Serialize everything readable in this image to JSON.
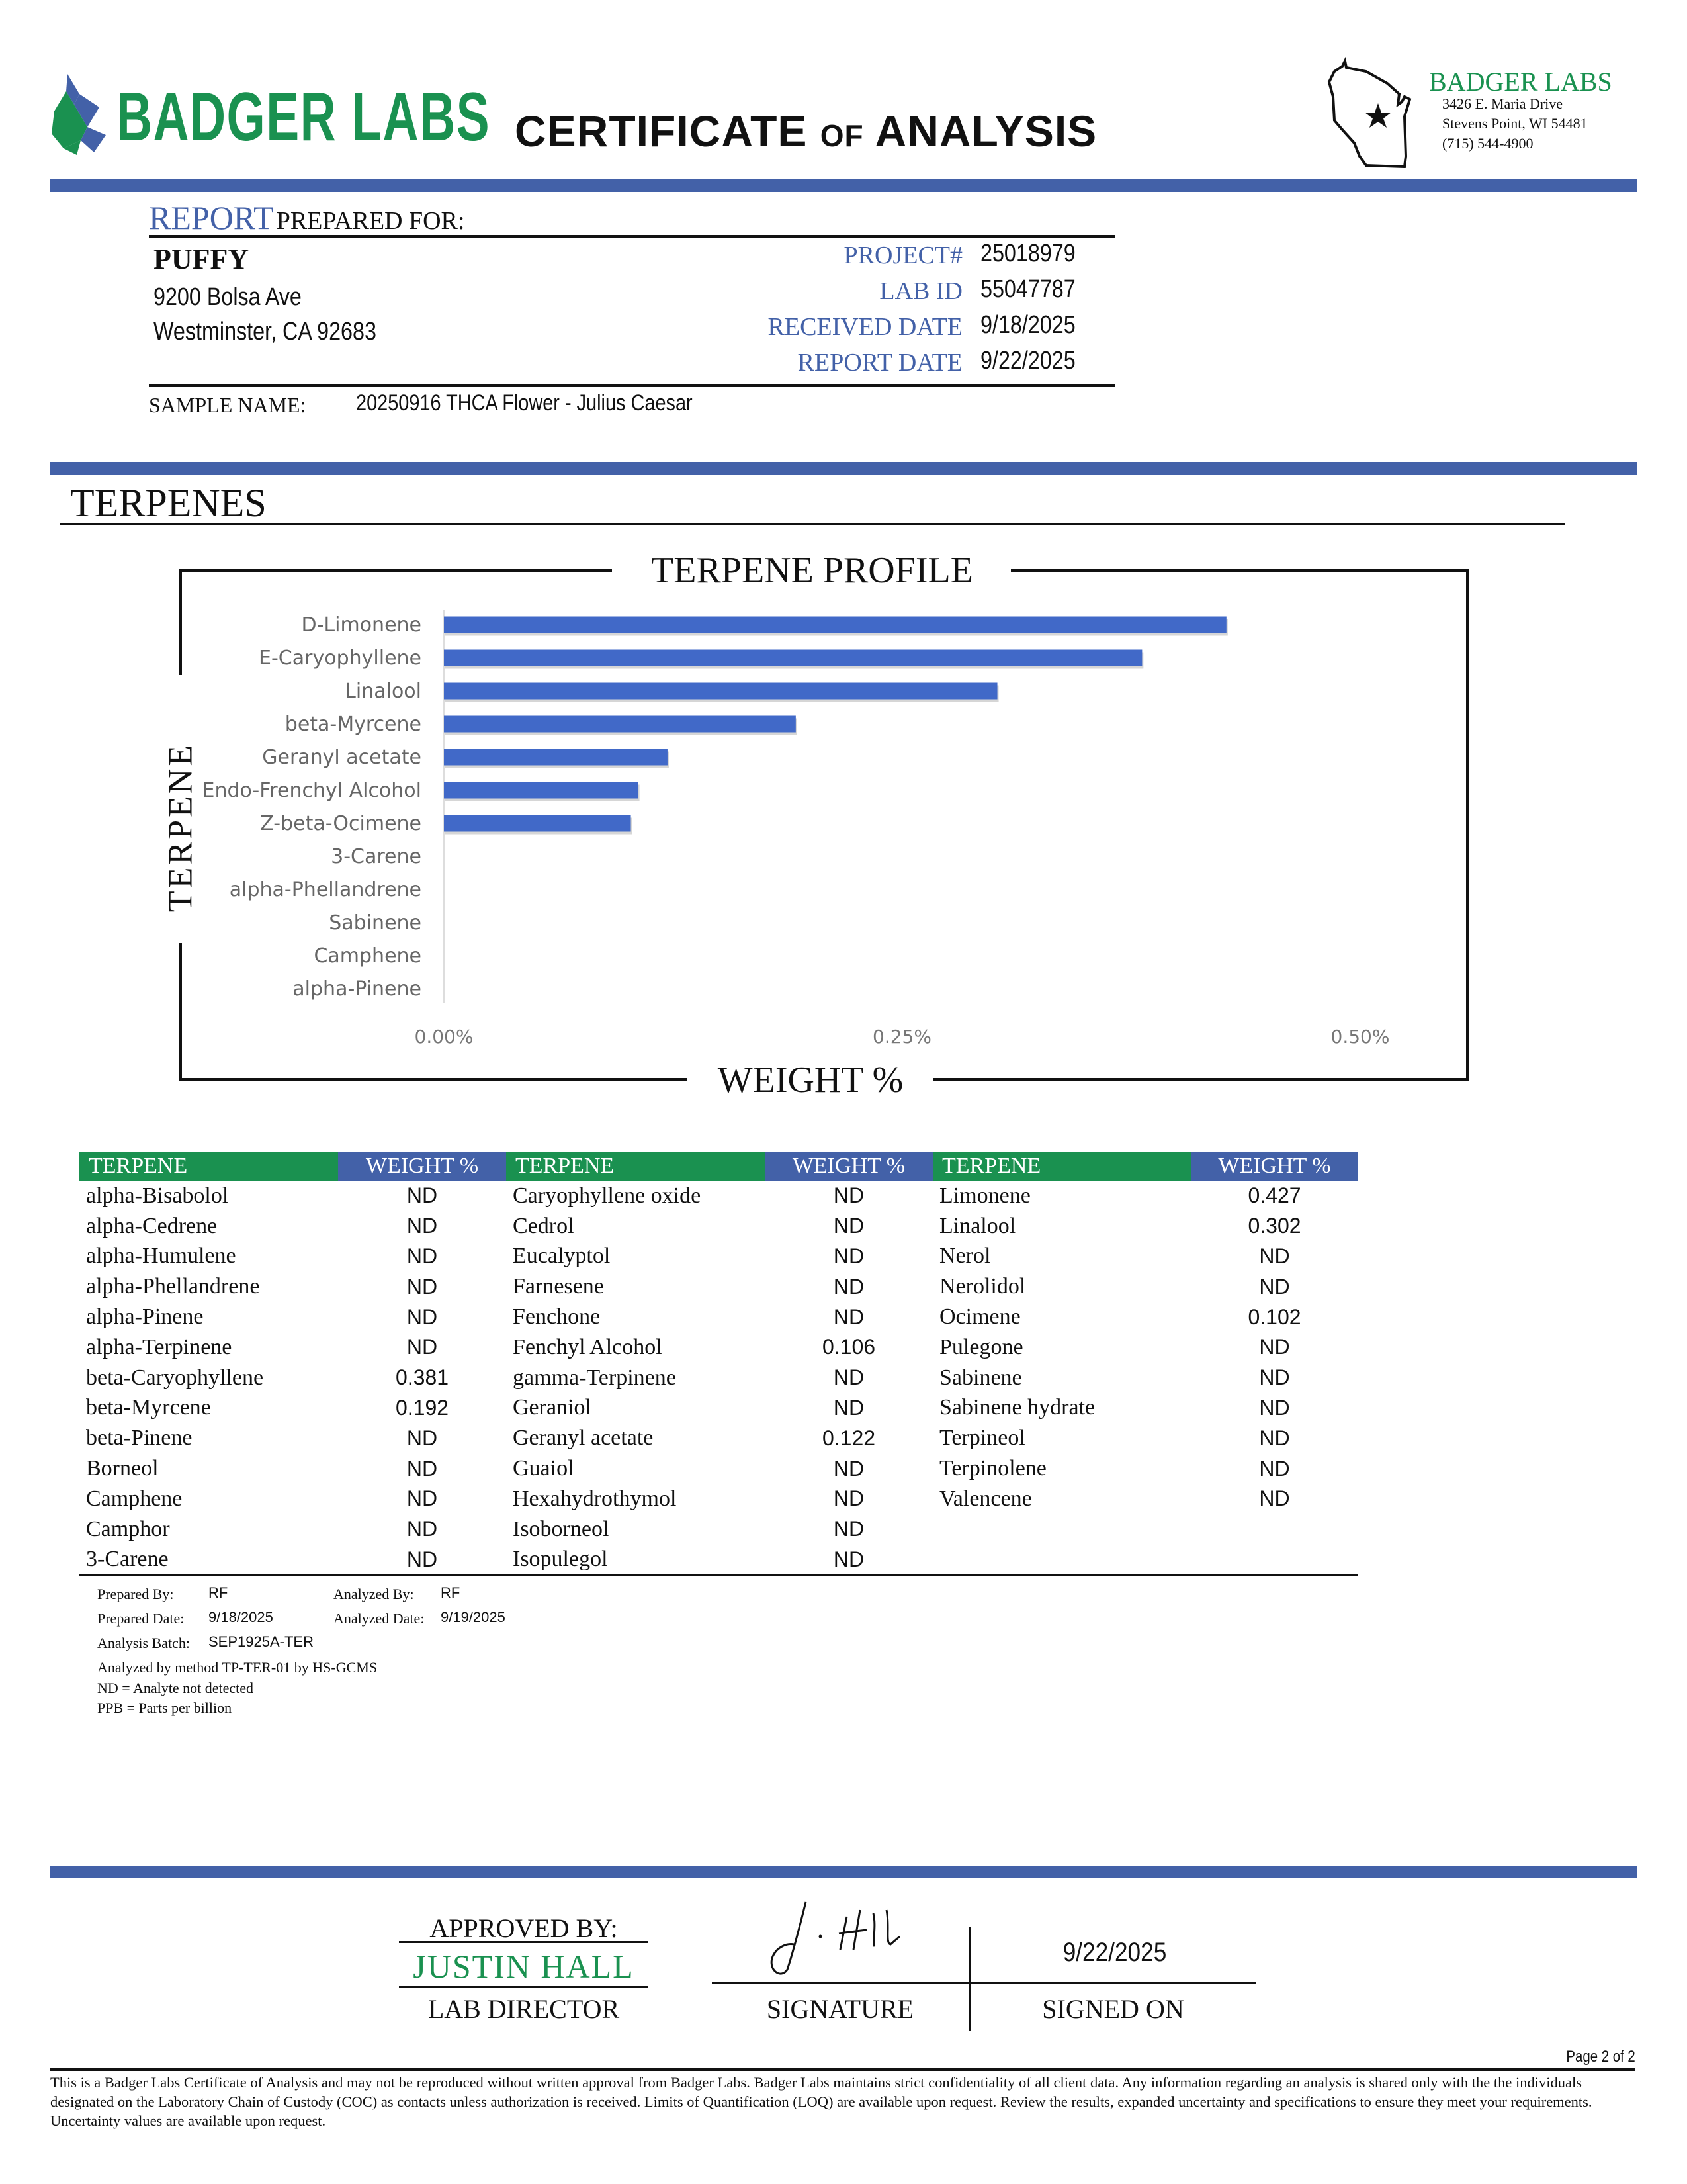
{
  "header": {
    "logo_text": "BADGER LABS",
    "title_main_1": "CERTIFICATE",
    "title_of": "OF",
    "title_main_2": "ANALYSIS",
    "lab_name": "BADGER LABS",
    "address_line1": "3426 E. Maria Drive",
    "address_line2": "Stevens Point, WI 54481",
    "phone": "(715) 544-4900"
  },
  "report": {
    "report_word": "REPORT",
    "prepared_for": "PREPARED FOR:",
    "client_name": "PUFFY",
    "client_address1": "9200 Bolsa Ave",
    "client_address2": "Westminster, CA 92683",
    "fields": [
      {
        "label": "PROJECT#",
        "value": "25018979"
      },
      {
        "label": "LAB ID",
        "value": "55047787"
      },
      {
        "label": "RECEIVED DATE",
        "value": "9/18/2025"
      },
      {
        "label": "REPORT DATE",
        "value": "9/22/2025"
      }
    ],
    "sample_label": "SAMPLE NAME:",
    "sample_name": "20250916 THCA Flower - Julius Caesar"
  },
  "section_title": "TERPENES",
  "chart_data": {
    "type": "bar",
    "orientation": "horizontal",
    "title": "TERPENE PROFILE",
    "xlabel": "WEIGHT %",
    "ylabel": "TERPENE",
    "categories": [
      "D-Limonene",
      "E-Caryophyllene",
      "Linalool",
      "beta-Myrcene",
      "Geranyl acetate",
      "Endo-Frenchyl Alcohol",
      "Z-beta-Ocimene",
      "3-Carene",
      "alpha-Phellandrene",
      "Sabinene",
      "Camphene",
      "alpha-Pinene"
    ],
    "values": [
      0.427,
      0.381,
      0.302,
      0.192,
      0.122,
      0.106,
      0.102,
      0,
      0,
      0,
      0,
      0
    ],
    "xlim": [
      0,
      0.5
    ],
    "x_ticks": [
      "0.00%",
      "0.25%",
      "0.50%"
    ],
    "x_tick_values": [
      0,
      0.25,
      0.5
    ],
    "grid": false,
    "bar_color": "#4169c8"
  },
  "table": {
    "header_terpene": "TERPENE",
    "header_weight": "WEIGHT %",
    "columns": [
      [
        [
          "alpha-Bisabolol",
          "ND"
        ],
        [
          "alpha-Cedrene",
          "ND"
        ],
        [
          "alpha-Humulene",
          "ND"
        ],
        [
          "alpha-Phellandrene",
          "ND"
        ],
        [
          "alpha-Pinene",
          "ND"
        ],
        [
          "alpha-Terpinene",
          "ND"
        ],
        [
          "beta-Caryophyllene",
          "0.381"
        ],
        [
          "beta-Myrcene",
          "0.192"
        ],
        [
          "beta-Pinene",
          "ND"
        ],
        [
          "Borneol",
          "ND"
        ],
        [
          "Camphene",
          "ND"
        ],
        [
          "Camphor",
          "ND"
        ],
        [
          "3-Carene",
          "ND"
        ]
      ],
      [
        [
          "Caryophyllene oxide",
          "ND"
        ],
        [
          "Cedrol",
          "ND"
        ],
        [
          "Eucalyptol",
          "ND"
        ],
        [
          "Farnesene",
          "ND"
        ],
        [
          "Fenchone",
          "ND"
        ],
        [
          "Fenchyl Alcohol",
          "0.106"
        ],
        [
          "gamma-Terpinene",
          "ND"
        ],
        [
          "Geraniol",
          "ND"
        ],
        [
          "Geranyl acetate",
          "0.122"
        ],
        [
          "Guaiol",
          "ND"
        ],
        [
          "Hexahydrothymol",
          "ND"
        ],
        [
          "Isoborneol",
          "ND"
        ],
        [
          "Isopulegol",
          "ND"
        ]
      ],
      [
        [
          "Limonene",
          "0.427"
        ],
        [
          "Linalool",
          "0.302"
        ],
        [
          "Nerol",
          "ND"
        ],
        [
          "Nerolidol",
          "ND"
        ],
        [
          "Ocimene",
          "0.102"
        ],
        [
          "Pulegone",
          "ND"
        ],
        [
          "Sabinene",
          "ND"
        ],
        [
          "Sabinene hydrate",
          "ND"
        ],
        [
          "Terpineol",
          "ND"
        ],
        [
          "Terpinolene",
          "ND"
        ],
        [
          "Valencene",
          "ND"
        ]
      ]
    ],
    "header_colors": {
      "terpene": "#1a9150",
      "weight": "#4361a8"
    }
  },
  "notes": {
    "prepared_by_label": "Prepared By:",
    "prepared_by": "RF",
    "analyzed_by_label": "Analyzed By:",
    "analyzed_by": "RF",
    "prepared_date_label": "Prepared Date:",
    "prepared_date": "9/18/2025",
    "analyzed_date_label": "Analyzed Date:",
    "analyzed_date": "9/19/2025",
    "batch_label": "Analysis Batch:",
    "batch": "SEP1925A-TER",
    "method": "Analyzed by method TP-TER-01 by HS-GCMS",
    "nd_def": "ND = Analyte not detected",
    "ppb_def": "PPB = Parts per billion"
  },
  "approval": {
    "approved_by": "APPROVED BY:",
    "name": "JUSTIN HALL",
    "role": "LAB DIRECTOR",
    "signature_text": "J. Hall",
    "signature_label": "SIGNATURE",
    "signed_date": "9/22/2025",
    "signed_on_label": "SIGNED ON"
  },
  "footer": {
    "page": "Page 2 of 2",
    "disclaimer": "This is a Badger Labs Certificate of Analysis and may not be reproduced without written approval from Badger Labs. Badger Labs maintains strict confidentiality of all client data. Any information regarding an analysis is shared only with the the individuals designated on the Laboratory Chain of Custody (COC) as contacts unless authorization is received. Limits of Quantification (LOQ) are available upon request. Review the results, expanded uncertainty and specifications to ensure they meet your requirements. Uncertainty values are available upon request."
  },
  "colors": {
    "brand_green": "#1a9150",
    "brand_blue": "#4361a8"
  }
}
